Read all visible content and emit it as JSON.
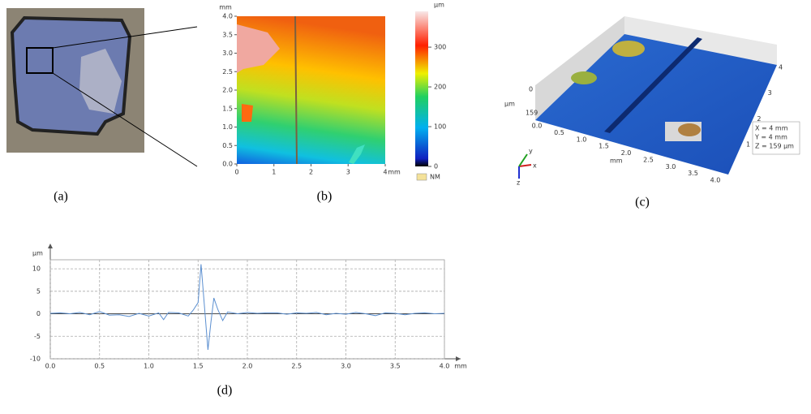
{
  "panel_a": {
    "label": "(a)"
  },
  "panel_b": {
    "label": "(b)",
    "y_unit": "mm",
    "x_unit": "mm",
    "xlim": [
      0,
      4
    ],
    "ylim": [
      0,
      4
    ],
    "xticks": [
      0,
      1,
      2,
      3,
      4
    ],
    "yticks": [
      {
        "value": 0,
        "label": "0.0"
      },
      {
        "value": 0.5,
        "label": "0.5"
      },
      {
        "value": 1,
        "label": "1.0"
      },
      {
        "value": 1.5,
        "label": "1.5"
      },
      {
        "value": 2,
        "label": "2.0"
      },
      {
        "value": 2.5,
        "label": "2.5"
      },
      {
        "value": 3,
        "label": "3.0"
      },
      {
        "value": 3.5,
        "label": "3.5"
      },
      {
        "value": 4,
        "label": "4.0"
      }
    ],
    "colorbar_unit": "µm",
    "colorbar_lim": [
      0,
      390
    ],
    "colorbar_ticks": [
      0,
      100,
      200,
      300
    ],
    "nm_label": "NM"
  },
  "panel_c": {
    "label": "(c)",
    "z_unit": "µm",
    "z_tick_labels": [
      "0",
      "159"
    ],
    "x_tick_labels": [
      "0.0",
      "0.5",
      "1.0",
      "1.5",
      "2.0",
      "2.5",
      "3.0",
      "3.5",
      "4.0"
    ],
    "x_unit": "mm",
    "y_tick_labels": [
      "1",
      "2",
      "3",
      "4"
    ],
    "info": [
      "X = 4 mm",
      "Y = 4 mm",
      "Z = 159 µm"
    ],
    "axes": [
      "x",
      "y",
      "z"
    ]
  },
  "chart_data": {
    "type": "line",
    "label": "(d)",
    "y_unit": "µm",
    "x_unit": "mm",
    "xlim": [
      0,
      4
    ],
    "ylim": [
      -10,
      12
    ],
    "xticks": [
      {
        "value": 0,
        "label": "0.0"
      },
      {
        "value": 0.5,
        "label": "0.5"
      },
      {
        "value": 1,
        "label": "1.0"
      },
      {
        "value": 1.5,
        "label": "1.5"
      },
      {
        "value": 2,
        "label": "2.0"
      },
      {
        "value": 2.5,
        "label": "2.5"
      },
      {
        "value": 3,
        "label": "3.0"
      },
      {
        "value": 3.5,
        "label": "3.5"
      },
      {
        "value": 4,
        "label": "4.0"
      }
    ],
    "yticks": [
      -10,
      -5,
      0,
      5,
      10
    ],
    "grid": true,
    "series": [
      {
        "color": "#5b8fd0",
        "x": [
          0,
          0.1,
          0.2,
          0.3,
          0.4,
          0.5,
          0.6,
          0.7,
          0.8,
          0.9,
          1.0,
          1.1,
          1.15,
          1.2,
          1.3,
          1.4,
          1.45,
          1.5,
          1.53,
          1.56,
          1.6,
          1.63,
          1.66,
          1.7,
          1.75,
          1.8,
          1.9,
          2.0,
          2.1,
          2.2,
          2.3,
          2.4,
          2.5,
          2.6,
          2.7,
          2.8,
          2.9,
          3.0,
          3.1,
          3.2,
          3.3,
          3.4,
          3.5,
          3.6,
          3.7,
          3.8,
          3.9,
          4.0
        ],
        "values": [
          0.1,
          0.2,
          0,
          0.3,
          -0.2,
          0.5,
          -0.3,
          -0.2,
          -0.6,
          0.1,
          -0.5,
          0.2,
          -1.3,
          0.3,
          0.2,
          -0.5,
          0.8,
          2.5,
          11,
          3,
          -8,
          -2,
          3.5,
          1,
          -1.5,
          0.4,
          0,
          0.3,
          0.1,
          0.2,
          0.2,
          -0.1,
          0.2,
          0.1,
          0.3,
          -0.2,
          0.1,
          -0.1,
          0.3,
          0,
          -0.4,
          0.2,
          0.1,
          -0.2,
          0.1,
          0.2,
          0,
          0.1
        ]
      }
    ]
  }
}
